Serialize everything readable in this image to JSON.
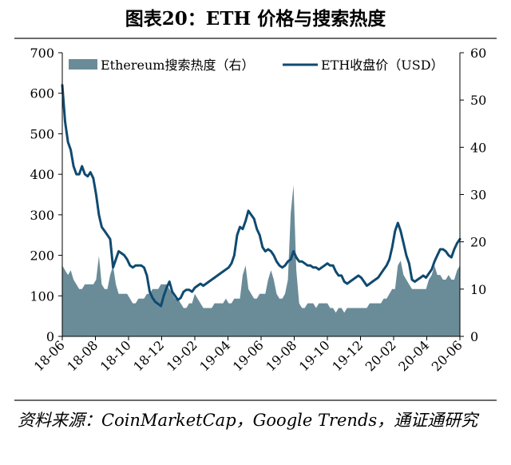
{
  "title": "图表20：ETH 价格与搜索热度",
  "source": "资料来源：CoinMarketCap，Google Trends，通证通研究",
  "colors": {
    "area": "#6a8c99",
    "line": "#0f4a70"
  },
  "chart_data": {
    "type": "line",
    "x_tick_labels": [
      "18-06",
      "18-08",
      "18-10",
      "18-12",
      "19-02",
      "19-04",
      "19-06",
      "19-08",
      "19-10",
      "19-12",
      "20-02",
      "20-04",
      "20-06"
    ],
    "y_left": {
      "ticks": [
        0,
        100,
        200,
        300,
        400,
        500,
        600,
        700
      ],
      "range": [
        0,
        700
      ]
    },
    "y_right": {
      "ticks": [
        0,
        10,
        20,
        30,
        40,
        50,
        60
      ],
      "range": [
        0,
        60
      ]
    },
    "legend_placement": "top",
    "grid": false,
    "series": [
      {
        "name": "Ethereum搜索热度（右）",
        "kind": "area",
        "axis": "right",
        "values": [
          15,
          14,
          13,
          14,
          12,
          11,
          10,
          10,
          11,
          11,
          11,
          11,
          12,
          17,
          11,
          10,
          10,
          13,
          15,
          11,
          9,
          9,
          9,
          9,
          8,
          7,
          7,
          8,
          8,
          8,
          9,
          9,
          10,
          10,
          10,
          11,
          11,
          11,
          10,
          9,
          8,
          8,
          7,
          6,
          6,
          7,
          7,
          9,
          8,
          7,
          6,
          6,
          6,
          6,
          7,
          7,
          7,
          7,
          8,
          7,
          7,
          8,
          8,
          8,
          13,
          15,
          10,
          9,
          8,
          8,
          9,
          9,
          9,
          12,
          14,
          12,
          9,
          8,
          8,
          9,
          12,
          26,
          32,
          14,
          7,
          6,
          6,
          7,
          7,
          7,
          6,
          7,
          7,
          7,
          7,
          6,
          6,
          5,
          6,
          6,
          5,
          6,
          6,
          6,
          6,
          6,
          6,
          6,
          6,
          7,
          7,
          7,
          7,
          7,
          8,
          8,
          9,
          10,
          10,
          15,
          16,
          13,
          12,
          11,
          10,
          10,
          10,
          10,
          10,
          10,
          12,
          13,
          15,
          13,
          13,
          12,
          12,
          13,
          12,
          12,
          14,
          15
        ]
      },
      {
        "name": "ETH收盘价（USD）",
        "kind": "line",
        "axis": "left",
        "values": [
          620,
          530,
          480,
          460,
          420,
          400,
          400,
          420,
          400,
          395,
          405,
          390,
          350,
          300,
          270,
          260,
          250,
          240,
          170,
          190,
          210,
          205,
          200,
          190,
          175,
          170,
          175,
          175,
          175,
          170,
          150,
          110,
          95,
          85,
          80,
          75,
          100,
          120,
          135,
          110,
          100,
          90,
          95,
          110,
          115,
          115,
          110,
          120,
          125,
          130,
          125,
          130,
          135,
          140,
          145,
          150,
          155,
          160,
          165,
          170,
          180,
          200,
          250,
          270,
          265,
          285,
          310,
          300,
          290,
          265,
          250,
          220,
          210,
          215,
          210,
          200,
          185,
          175,
          170,
          175,
          185,
          190,
          210,
          195,
          185,
          185,
          180,
          175,
          175,
          170,
          170,
          165,
          170,
          175,
          180,
          175,
          175,
          160,
          150,
          150,
          135,
          130,
          135,
          140,
          145,
          150,
          145,
          135,
          125,
          130,
          135,
          140,
          145,
          155,
          165,
          175,
          190,
          220,
          260,
          280,
          260,
          230,
          200,
          180,
          140,
          135,
          140,
          145,
          150,
          145,
          155,
          165,
          185,
          200,
          215,
          215,
          210,
          200,
          195,
          215,
          230,
          240
        ]
      }
    ]
  }
}
